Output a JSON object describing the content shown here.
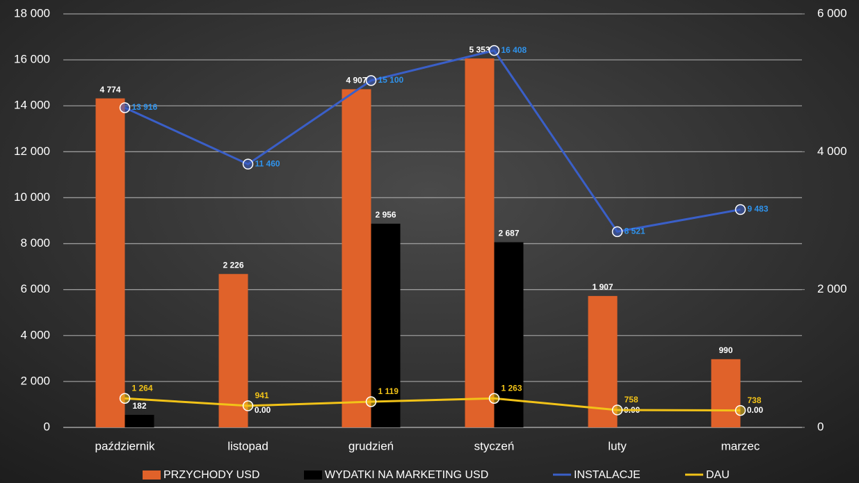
{
  "chart_data": {
    "type": "bar",
    "categories": [
      "październik",
      "listopad",
      "grudzień",
      "styczeń",
      "luty",
      "marzec"
    ],
    "series": [
      {
        "name": "PRZYCHODY USD",
        "type": "bar",
        "axis": "y2",
        "color": "#e0622a",
        "label_color": "#ffffff",
        "values": [
          4774,
          2226,
          4907,
          5353,
          1907,
          990
        ],
        "value_labels": [
          "4 774",
          "2 226",
          "4 907",
          "5 353",
          "1 907",
          "990"
        ]
      },
      {
        "name": "WYDATKI NA MARKETING USD",
        "type": "bar",
        "axis": "y2",
        "color": "#000000",
        "label_color": "#ffffff",
        "values": [
          182,
          0,
          2956,
          2687,
          0,
          0
        ],
        "value_labels": [
          "182",
          "0.00",
          "2 956",
          "2 687",
          "0.00",
          "0.00"
        ]
      },
      {
        "name": "INSTALACJE",
        "type": "line",
        "color": "#3a5fc8",
        "label_color": "#2f93ec",
        "values": [
          13916,
          11460,
          15100,
          16408,
          8521,
          9483
        ],
        "value_labels": [
          "13 916",
          "11 460",
          "15 100",
          "16 408",
          "8 521",
          "9 483"
        ]
      },
      {
        "name": "DAU",
        "type": "line",
        "color": "#f2c318",
        "label_color": "#f2c318",
        "values": [
          1264,
          941,
          1119,
          1263,
          758,
          738
        ],
        "value_labels": [
          "1 264",
          "941",
          "1 119",
          "1 263",
          "758",
          "738"
        ]
      }
    ],
    "ylim": [
      0,
      18000
    ],
    "yticks": [
      {
        "value": 0,
        "label": "0"
      },
      {
        "value": 2000,
        "label": "2 000"
      },
      {
        "value": 4000,
        "label": "4 000"
      },
      {
        "value": 6000,
        "label": "6 000"
      },
      {
        "value": 8000,
        "label": "8 000"
      },
      {
        "value": 10000,
        "label": "10 000"
      },
      {
        "value": 12000,
        "label": "12 000"
      },
      {
        "value": 14000,
        "label": "14 000"
      },
      {
        "value": 16000,
        "label": "16 000"
      },
      {
        "value": 18000,
        "label": "18 000"
      }
    ],
    "y2lim": [
      0,
      6000
    ],
    "y2ticks": [
      0,
      {
        "value": 2000,
        "label": "2 000"
      },
      {
        "value": 4000,
        "label": "4 000"
      },
      {
        "value": 6000,
        "label": "6 000"
      }
    ],
    "grid": true
  }
}
